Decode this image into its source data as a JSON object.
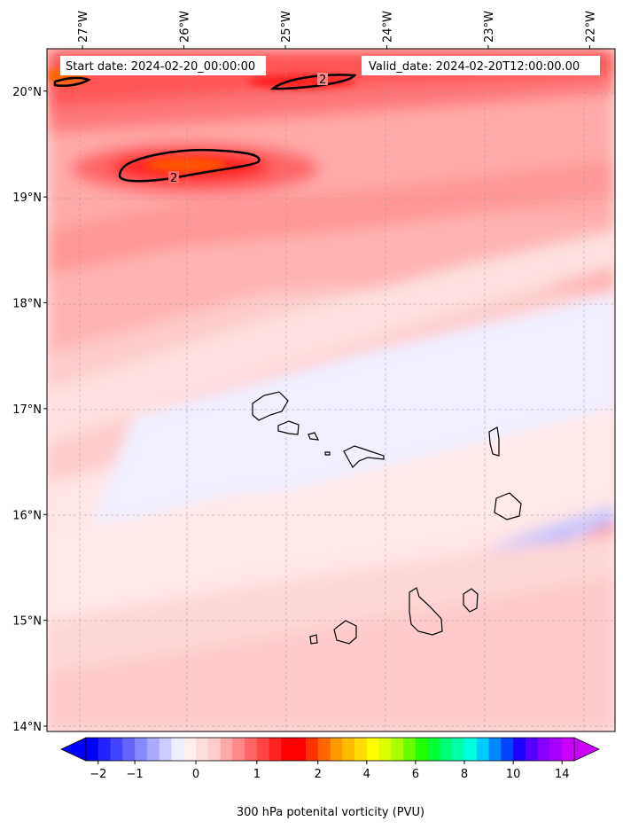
{
  "header": {
    "start_date": "Start date: 2024-02-20_00:00:00",
    "valid_date": "Valid_date: 2024-02-20T12:00:00.00"
  },
  "map": {
    "lon_range": [
      -27.35,
      -21.75
    ],
    "lat_range": [
      13.95,
      20.4
    ],
    "lon_ticks": [
      {
        "value": -27,
        "label": "27°W"
      },
      {
        "value": -26,
        "label": "26°W"
      },
      {
        "value": -25,
        "label": "25°W"
      },
      {
        "value": -24,
        "label": "24°W"
      },
      {
        "value": -23,
        "label": "23°W"
      },
      {
        "value": -22,
        "label": "22°W"
      }
    ],
    "lat_ticks": [
      {
        "value": 20,
        "label": "20°N"
      },
      {
        "value": 19,
        "label": "19°N"
      },
      {
        "value": 18,
        "label": "18°N"
      },
      {
        "value": 17,
        "label": "17°N"
      },
      {
        "value": 16,
        "label": "16°N"
      },
      {
        "value": 15,
        "label": "15°N"
      },
      {
        "value": 14,
        "label": "14°N"
      }
    ],
    "contour_label": "2",
    "gridlines": true
  },
  "colorbar": {
    "title": "300 hPa potenital vorticity (PVU)",
    "tick_labels": [
      {
        "index": 1,
        "label": "−2"
      },
      {
        "index": 4,
        "label": "−1"
      },
      {
        "index": 9,
        "label": "0"
      },
      {
        "index": 14,
        "label": "1"
      },
      {
        "index": 19,
        "label": "2"
      },
      {
        "index": 23,
        "label": "4"
      },
      {
        "index": 27,
        "label": "6"
      },
      {
        "index": 31,
        "label": "8"
      },
      {
        "index": 35,
        "label": "10"
      },
      {
        "index": 39,
        "label": "14"
      }
    ],
    "colors": [
      "#0000ff",
      "#2222ff",
      "#4444ff",
      "#6666ff",
      "#8888ff",
      "#aaaaff",
      "#ccccff",
      "#eeeeff",
      "#ffeeee",
      "#ffdddd",
      "#ffcccc",
      "#ffaaaa",
      "#ff8888",
      "#ff6666",
      "#ff4444",
      "#ff2222",
      "#ff0000",
      "#ff0000",
      "#ff3300",
      "#ff6600",
      "#ff9900",
      "#ffbb00",
      "#ffdd00",
      "#ffff00",
      "#ddff00",
      "#aaff00",
      "#66ff00",
      "#22ff00",
      "#00ff33",
      "#00ff77",
      "#00ffaa",
      "#00ffdd",
      "#00ccff",
      "#0088ff",
      "#0044ff",
      "#2200ff",
      "#5500ff",
      "#8800ff",
      "#aa00ff",
      "#cc00ff"
    ]
  }
}
